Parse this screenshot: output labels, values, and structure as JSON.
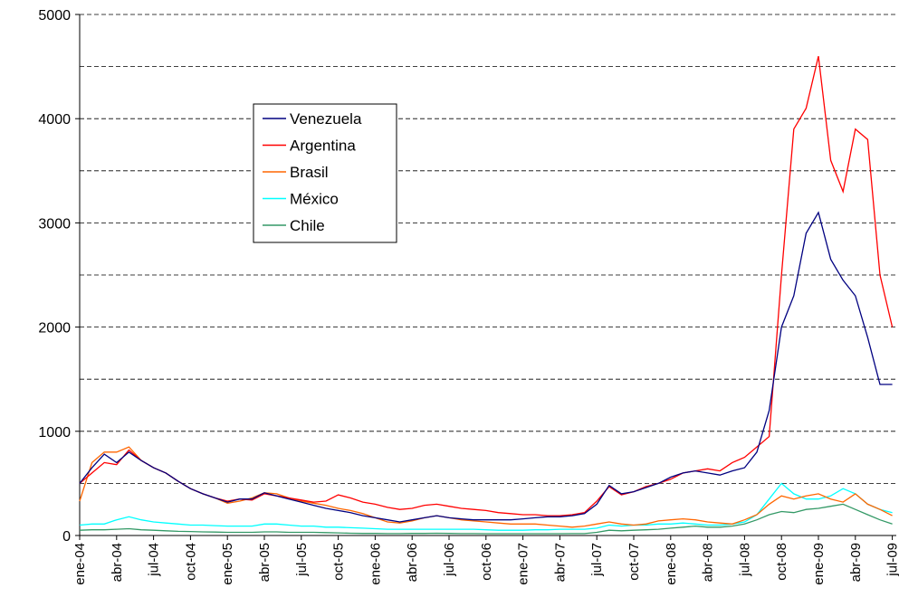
{
  "chart_data": {
    "type": "line",
    "categories": [
      "ene-04",
      null,
      null,
      "abr-04",
      null,
      null,
      "jul-04",
      null,
      null,
      "oct-04",
      null,
      null,
      "ene-05",
      null,
      null,
      "abr-05",
      null,
      null,
      "jul-05",
      null,
      null,
      "oct-05",
      null,
      null,
      "ene-06",
      null,
      null,
      "abr-06",
      null,
      null,
      "jul-06",
      null,
      null,
      "oct-06",
      null,
      null,
      "ene-07",
      null,
      null,
      "abr-07",
      null,
      null,
      "jul-07",
      null,
      null,
      "oct-07",
      null,
      null,
      "ene-08",
      null,
      null,
      "abr-08",
      null,
      null,
      "jul-08",
      null,
      null,
      "oct-08",
      null,
      null,
      "ene-09",
      null,
      null,
      "abr-09",
      null,
      null,
      "jul-09"
    ],
    "series": [
      {
        "name": "Venezuela",
        "color": "#000080",
        "values": [
          500,
          650,
          780,
          700,
          800,
          720,
          650,
          600,
          520,
          450,
          400,
          360,
          320,
          350,
          350,
          410,
          380,
          350,
          320,
          290,
          260,
          240,
          220,
          190,
          170,
          150,
          130,
          150,
          170,
          190,
          170,
          160,
          150,
          150,
          150,
          150,
          160,
          170,
          180,
          180,
          190,
          210,
          300,
          480,
          400,
          420,
          460,
          500,
          560,
          600,
          620,
          600,
          580,
          620,
          650,
          800,
          1200,
          2000,
          2300,
          2900,
          3100,
          2650,
          2450,
          2300,
          1900,
          1450,
          1450
        ]
      },
      {
        "name": "Argentina",
        "color": "#ff0000",
        "values": [
          500,
          600,
          700,
          680,
          820,
          720,
          650,
          600,
          520,
          450,
          400,
          360,
          330,
          350,
          340,
          400,
          380,
          360,
          340,
          320,
          330,
          390,
          360,
          320,
          300,
          270,
          250,
          260,
          290,
          300,
          280,
          260,
          250,
          240,
          220,
          210,
          200,
          200,
          190,
          190,
          200,
          220,
          330,
          470,
          390,
          420,
          470,
          500,
          540,
          600,
          620,
          640,
          620,
          700,
          750,
          850,
          950,
          2500,
          3900,
          4100,
          4600,
          3600,
          3300,
          3900,
          3800,
          2500,
          2000
        ]
      },
      {
        "name": "Brasil",
        "color": "#ff6600",
        "values": [
          330,
          700,
          800,
          800,
          850,
          720,
          650,
          600,
          520,
          450,
          400,
          360,
          310,
          330,
          360,
          410,
          400,
          360,
          330,
          310,
          290,
          260,
          240,
          210,
          170,
          130,
          120,
          140,
          170,
          190,
          170,
          150,
          140,
          130,
          120,
          110,
          110,
          110,
          100,
          90,
          80,
          90,
          110,
          130,
          110,
          100,
          110,
          140,
          150,
          160,
          150,
          130,
          120,
          110,
          150,
          200,
          300,
          380,
          350,
          380,
          400,
          350,
          320,
          400,
          300,
          250,
          190
        ]
      },
      {
        "name": "México",
        "color": "#00ffff",
        "values": [
          100,
          110,
          110,
          150,
          180,
          150,
          130,
          120,
          110,
          100,
          100,
          95,
          90,
          90,
          90,
          110,
          110,
          100,
          90,
          90,
          80,
          80,
          75,
          70,
          65,
          60,
          60,
          60,
          60,
          60,
          60,
          60,
          60,
          55,
          50,
          50,
          50,
          55,
          55,
          60,
          60,
          60,
          70,
          100,
          90,
          100,
          100,
          110,
          110,
          120,
          110,
          100,
          100,
          110,
          130,
          200,
          350,
          500,
          400,
          350,
          350,
          380,
          450,
          400,
          300,
          250,
          220
        ]
      },
      {
        "name": "Chile",
        "color": "#339966",
        "values": [
          50,
          55,
          55,
          60,
          65,
          55,
          50,
          45,
          40,
          38,
          35,
          33,
          30,
          30,
          30,
          35,
          35,
          30,
          30,
          30,
          28,
          25,
          22,
          20,
          20,
          18,
          18,
          20,
          20,
          22,
          20,
          18,
          18,
          17,
          17,
          17,
          17,
          17,
          17,
          17,
          18,
          18,
          30,
          50,
          45,
          50,
          55,
          60,
          70,
          80,
          90,
          80,
          80,
          90,
          110,
          150,
          200,
          230,
          220,
          250,
          260,
          280,
          300,
          250,
          200,
          150,
          110
        ]
      }
    ],
    "ylim": [
      0,
      5000
    ],
    "yticks": [
      0,
      1000,
      2000,
      3000,
      4000,
      5000
    ],
    "grid_lines": [
      500,
      1000,
      1500,
      2000,
      2500,
      3000,
      3500,
      4000,
      4500,
      5000
    ],
    "grid": true,
    "legend": "upper left"
  }
}
